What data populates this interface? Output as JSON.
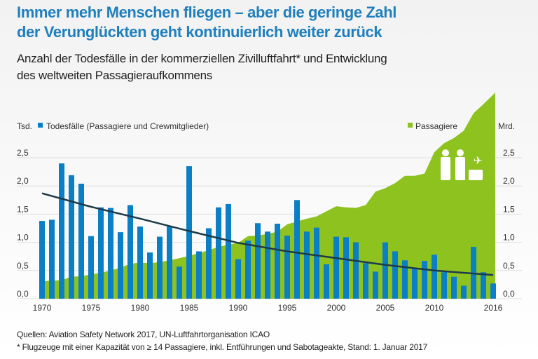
{
  "title_line1": "Immer mehr Menschen fliegen – aber die geringe Zahl",
  "title_line2": "der Verunglückten geht kontinuierlich weiter zurück",
  "subtitle_line1": "Anzahl der Todesfälle in der kommerziellen Zivilluftfahrt* und Entwicklung",
  "subtitle_line2": "des weltweiten Passagieraufkommens",
  "sources": "Quellen: Aviation Safety Network 2017, UN-Luftfahrtorganisation ICAO",
  "footnote": "* Flugzeuge mit einer Kapazität von ≥ 14 Passagiere, inkl. Entführungen und Sabotageakte, Stand: 1. Januar 2017",
  "colors": {
    "deaths": "#0a7fc6",
    "passengers": "#8dc21f",
    "trend": "#1d3a4a",
    "title": "#1f7fbd"
  },
  "icons": [
    "man-icon",
    "woman-icon",
    "airplane-icon",
    "suitcase-icon"
  ],
  "chart_data": {
    "type": "bar",
    "combined_with": "area",
    "left_axis_unit": "Tsd.",
    "right_axis_unit": "Mrd.",
    "x": [
      1970,
      1971,
      1972,
      1973,
      1974,
      1975,
      1976,
      1977,
      1978,
      1979,
      1980,
      1981,
      1982,
      1983,
      1984,
      1985,
      1986,
      1987,
      1988,
      1989,
      1990,
      1991,
      1992,
      1993,
      1994,
      1995,
      1996,
      1997,
      1998,
      1999,
      2000,
      2001,
      2002,
      2003,
      2004,
      2005,
      2006,
      2007,
      2008,
      2009,
      2010,
      2011,
      2012,
      2013,
      2014,
      2015,
      2016
    ],
    "xticks": [
      "1970",
      "1975",
      "1980",
      "1985",
      "1990",
      "1995",
      "2000",
      "2005",
      "2010",
      "2016"
    ],
    "yticks_left": [
      "0,0",
      "0,5",
      "1,0",
      "1,5",
      "2,0",
      "2,5"
    ],
    "yticks_right": [
      "0,0",
      "0,5",
      "1,0",
      "1,5",
      "2,0",
      "2,5"
    ],
    "ylim": [
      0,
      3.7
    ],
    "grid": true,
    "series": [
      {
        "name": "Todesfälle (Passagiere und Crewmitglieder)",
        "type": "bar",
        "axis": "left",
        "values": [
          1.38,
          1.4,
          2.4,
          2.19,
          2.04,
          1.11,
          1.62,
          1.61,
          1.18,
          1.66,
          1.28,
          0.82,
          1.1,
          1.28,
          0.57,
          2.35,
          0.84,
          1.25,
          1.62,
          1.68,
          0.7,
          1.03,
          1.34,
          1.19,
          1.33,
          1.12,
          1.75,
          1.19,
          1.26,
          0.61,
          1.1,
          1.09,
          1.0,
          0.63,
          0.48,
          1.0,
          0.84,
          0.68,
          0.53,
          0.67,
          0.78,
          0.47,
          0.39,
          0.23,
          0.92,
          0.47,
          0.27
        ]
      },
      {
        "name": "Passagiere",
        "type": "area",
        "axis": "right",
        "values": [
          0.31,
          0.32,
          0.33,
          0.39,
          0.4,
          0.43,
          0.46,
          0.5,
          0.55,
          0.62,
          0.64,
          0.63,
          0.65,
          0.68,
          0.72,
          0.76,
          0.81,
          0.86,
          0.92,
          0.96,
          0.99,
          1.11,
          1.12,
          1.15,
          1.19,
          1.32,
          1.37,
          1.42,
          1.46,
          1.55,
          1.64,
          1.62,
          1.61,
          1.66,
          1.9,
          1.96,
          2.05,
          2.18,
          2.18,
          2.22,
          2.6,
          2.76,
          2.85,
          2.98,
          3.29,
          3.45,
          3.62
        ]
      },
      {
        "type": "trendline",
        "axis": "left",
        "x": [
          1970,
          1975,
          1980,
          1985,
          1990,
          1995,
          2000,
          2005,
          2010,
          2016
        ],
        "values": [
          1.87,
          1.63,
          1.42,
          1.2,
          0.99,
          0.84,
          0.72,
          0.6,
          0.5,
          0.42
        ]
      }
    ],
    "legend": [
      "top-left: Todesfälle",
      "top-right: Passagiere"
    ]
  }
}
